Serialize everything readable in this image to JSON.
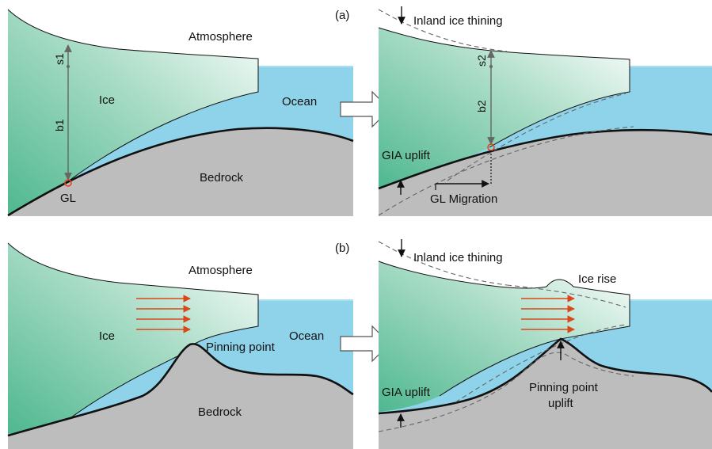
{
  "panel_a": {
    "tag": "(a)",
    "left": {
      "atmosphere": "Atmosphere",
      "ice": "Ice",
      "ocean": "Ocean",
      "bedrock": "Bedrock",
      "grounding_line": "GL",
      "s_label": "s1",
      "b_label": "b1"
    },
    "right": {
      "inland_thinning": "Inland ice thining",
      "gia_uplift": "GIA uplift",
      "gl_migration": "GL Migration",
      "s_label": "s2",
      "b_label": "b2"
    }
  },
  "panel_b": {
    "tag": "(b)",
    "left": {
      "atmosphere": "Atmosphere",
      "ice": "Ice",
      "ocean": "Ocean",
      "bedrock": "Bedrock",
      "pinning_point": "Pinning point"
    },
    "right": {
      "inland_thinning": "Inland ice thining",
      "ice_rise": "Ice rise",
      "gia_uplift": "GIA uplift",
      "pinning_uplift_line1": "Pinning point",
      "pinning_uplift_line2": "uplift"
    }
  },
  "colors": {
    "ocean": "#8fd3ea",
    "ice_dark": "#5cbf9b",
    "ice_light": "#ffffff",
    "bedrock": "#bdbdbd",
    "flow_arrow": "#d9481a",
    "grounding_marker": "#e2431c"
  }
}
